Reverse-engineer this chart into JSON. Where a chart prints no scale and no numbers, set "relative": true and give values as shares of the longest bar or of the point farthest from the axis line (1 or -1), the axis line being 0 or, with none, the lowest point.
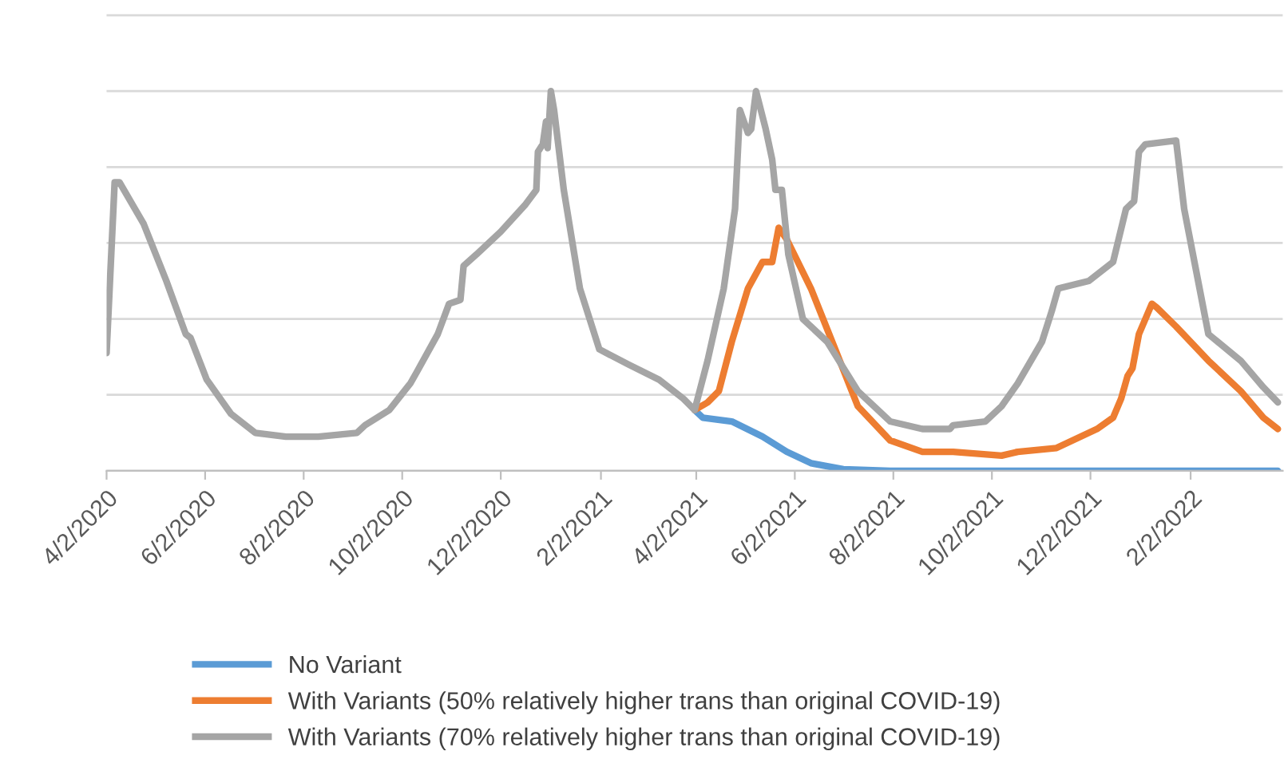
{
  "chart_data": {
    "type": "line",
    "relative": true,
    "grid": "y",
    "legend": "bottom",
    "marker": "none",
    "line_style": "solid",
    "xlim": [
      "2020-04-02",
      "2022-03-31"
    ],
    "xticks": [
      {
        "value": "2020-04-02",
        "label": "4/2/2020"
      },
      {
        "value": "2020-06-02",
        "label": "6/2/2020"
      },
      {
        "value": "2020-08-02",
        "label": "8/2/2020"
      },
      {
        "value": "2020-10-02",
        "label": "10/2/2020"
      },
      {
        "value": "2020-12-02",
        "label": "12/2/2020"
      },
      {
        "value": "2021-02-02",
        "label": "2/2/2021"
      },
      {
        "value": "2021-04-02",
        "label": "4/2/2021"
      },
      {
        "value": "2021-06-02",
        "label": "6/2/2021"
      },
      {
        "value": "2021-08-02",
        "label": "8/2/2021"
      },
      {
        "value": "2021-10-02",
        "label": "10/2/2021"
      },
      {
        "value": "2021-12-02",
        "label": "12/2/2021"
      },
      {
        "value": "2022-02-02",
        "label": "2/2/2022"
      }
    ],
    "series": [
      {
        "name": "No Variant",
        "color": "#5b9bd5",
        "x": [
          "2021-04-01",
          "2021-04-06",
          "2021-04-24",
          "2021-05-13",
          "2021-05-28",
          "2021-06-12",
          "2021-07-02",
          "2021-07-31",
          "2022-03-28"
        ],
        "values": [
          0.16,
          0.14,
          0.13,
          0.09,
          0.05,
          0.02,
          0.004,
          0,
          0
        ]
      },
      {
        "name": "With Variants (50% relatively higher trans than original COVID-19)",
        "color": "#ed7d31",
        "x": [
          "2021-04-01",
          "2021-04-09",
          "2021-04-16",
          "2021-04-24",
          "2021-05-04",
          "2021-05-13",
          "2021-05-19",
          "2021-05-23",
          "2021-05-28",
          "2021-06-12",
          "2021-06-27",
          "2021-07-11",
          "2021-07-31",
          "2021-08-20",
          "2021-09-08",
          "2021-10-08",
          "2021-10-18",
          "2021-11-11",
          "2021-12-06",
          "2021-12-16",
          "2021-12-21",
          "2021-12-25",
          "2021-12-28",
          "2022-01-01",
          "2022-01-09",
          "2022-01-12",
          "2022-01-24",
          "2022-02-13",
          "2022-03-05",
          "2022-03-19",
          "2022-03-28"
        ],
        "values": [
          0.16,
          0.18,
          0.21,
          0.34,
          0.48,
          0.55,
          0.55,
          0.64,
          0.61,
          0.48,
          0.32,
          0.17,
          0.08,
          0.05,
          0.05,
          0.04,
          0.05,
          0.06,
          0.11,
          0.14,
          0.19,
          0.25,
          0.27,
          0.36,
          0.44,
          0.43,
          0.38,
          0.29,
          0.21,
          0.14,
          0.11
        ]
      },
      {
        "name": "With Variants (70% relatively higher trans than original COVID-19)",
        "color": "#a5a5a5",
        "x": [
          "2020-04-02",
          "2020-04-07",
          "2020-04-10",
          "2020-04-25",
          "2020-05-09",
          "2020-05-21",
          "2020-05-24",
          "2020-06-03",
          "2020-06-18",
          "2020-07-03",
          "2020-07-22",
          "2020-08-11",
          "2020-09-04",
          "2020-09-09",
          "2020-09-24",
          "2020-10-07",
          "2020-10-11",
          "2020-10-24",
          "2020-10-31",
          "2020-11-07",
          "2020-11-09",
          "2020-11-17",
          "2020-12-02",
          "2020-12-17",
          "2020-12-24",
          "2020-12-25",
          "2020-12-28",
          "2020-12-30",
          "2020-12-31",
          "2021-01-02",
          "2021-01-04",
          "2021-01-10",
          "2021-01-20",
          "2021-02-01",
          "2021-02-19",
          "2021-03-10",
          "2021-03-25",
          "2021-04-01",
          "2021-04-09",
          "2021-04-19",
          "2021-04-26",
          "2021-04-29",
          "2021-05-04",
          "2021-05-06",
          "2021-05-09",
          "2021-05-15",
          "2021-05-19",
          "2021-05-21",
          "2021-05-25",
          "2021-05-29",
          "2021-06-07",
          "2021-06-22",
          "2021-07-11",
          "2021-07-31",
          "2021-08-20",
          "2021-09-06",
          "2021-09-08",
          "2021-09-28",
          "2021-10-08",
          "2021-10-18",
          "2021-11-02",
          "2021-11-08",
          "2021-11-12",
          "2021-12-01",
          "2021-12-16",
          "2021-12-24",
          "2021-12-29",
          "2022-01-01",
          "2022-01-05",
          "2022-01-24",
          "2022-01-29",
          "2022-02-13",
          "2022-03-05",
          "2022-03-19",
          "2022-03-28"
        ],
        "values": [
          0.31,
          0.76,
          0.76,
          0.65,
          0.5,
          0.36,
          0.35,
          0.24,
          0.15,
          0.1,
          0.09,
          0.09,
          0.1,
          0.12,
          0.16,
          0.23,
          0.26,
          0.36,
          0.44,
          0.45,
          0.54,
          0.57,
          0.63,
          0.7,
          0.74,
          0.84,
          0.86,
          0.92,
          0.85,
          1.0,
          0.95,
          0.74,
          0.48,
          0.32,
          0.28,
          0.24,
          0.19,
          0.16,
          0.29,
          0.48,
          0.69,
          0.95,
          0.89,
          0.9,
          1.0,
          0.9,
          0.82,
          0.74,
          0.74,
          0.57,
          0.4,
          0.34,
          0.21,
          0.13,
          0.11,
          0.11,
          0.12,
          0.13,
          0.17,
          0.23,
          0.34,
          0.42,
          0.48,
          0.5,
          0.55,
          0.69,
          0.71,
          0.84,
          0.86,
          0.87,
          0.69,
          0.36,
          0.29,
          0.22,
          0.18
        ]
      }
    ]
  }
}
